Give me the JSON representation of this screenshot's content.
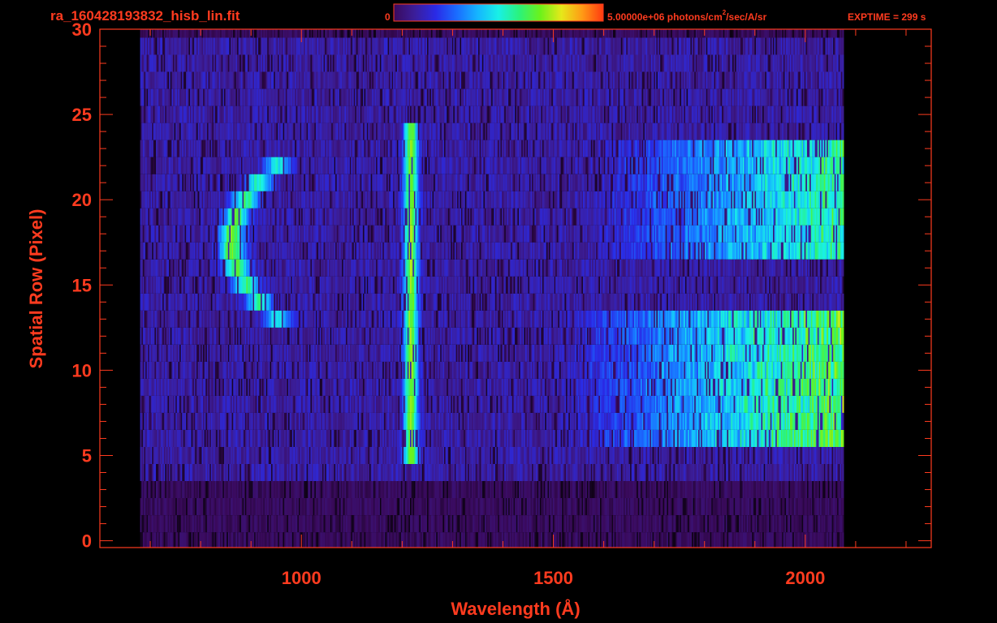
{
  "header": {
    "filename": "ra_160428193832_hisb_lin.fit",
    "colorbar_min": "0",
    "colorbar_max_prefix": "5.00000e+06 photons/cm",
    "colorbar_max_sup": "2",
    "colorbar_max_suffix": "/sec/A/sr",
    "exptime": "EXPTIME = 299 s"
  },
  "colors": {
    "axis": "#ff3b1f",
    "background": "#000000",
    "colormap": [
      "#000000",
      "#3a0a5c",
      "#3b1e9a",
      "#2a2ae6",
      "#1a6cff",
      "#15b5ff",
      "#19f0e6",
      "#2bf27a",
      "#6cf21a",
      "#e6e81a",
      "#ff9a15",
      "#ff3a10"
    ]
  },
  "chart_data": {
    "type": "heatmap",
    "title": "",
    "xlabel": "Wavelength (Å)",
    "ylabel": "Spatial Row (Pixel)",
    "xlim": [
      600,
      2250
    ],
    "ylim": [
      -0.4,
      30
    ],
    "xticks": [
      1000,
      1500,
      2000
    ],
    "yticks": [
      0,
      5,
      10,
      15,
      20,
      25,
      30
    ],
    "colorbar": {
      "min": 0,
      "max": 5000000,
      "units": "photons/cm^2/sec/A/sr"
    },
    "detector_wavelength_range": [
      680,
      2075
    ],
    "features": [
      {
        "wavelength_center": 870,
        "rows": [
          13,
          22
        ],
        "peak_level": 0.55,
        "shape": "arc"
      },
      {
        "wavelength_center": 1216,
        "rows": [
          5,
          24
        ],
        "peak_level": 0.55,
        "shape": "line"
      },
      {
        "wavelength_range": [
          1650,
          2070
        ],
        "rows": [
          6,
          13
        ],
        "peak_level": 0.55,
        "shape": "continuum"
      },
      {
        "wavelength_range": [
          1700,
          2070
        ],
        "rows": [
          17,
          23
        ],
        "peak_level": 0.5,
        "shape": "continuum"
      }
    ]
  }
}
